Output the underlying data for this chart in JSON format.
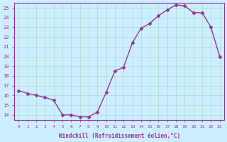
{
  "x": [
    0,
    1,
    2,
    3,
    4,
    5,
    6,
    7,
    8,
    9,
    10,
    11,
    12,
    13,
    14,
    15,
    16,
    17,
    18,
    19,
    20,
    21,
    22,
    23
  ],
  "y": [
    16.5,
    16.2,
    16.0,
    15.8,
    15.5,
    14.0,
    14.0,
    13.8,
    13.8,
    14.3,
    16.3,
    18.5,
    18.9,
    21.4,
    22.9,
    23.4,
    24.2,
    24.8,
    25.3,
    25.2,
    24.5,
    24.5,
    23.0,
    20.0
  ],
  "xlim": [
    -0.5,
    23.5
  ],
  "ylim": [
    13.5,
    25.5
  ],
  "yticks": [
    14,
    15,
    16,
    17,
    18,
    19,
    20,
    21,
    22,
    23,
    24,
    25
  ],
  "xticks": [
    0,
    1,
    2,
    3,
    4,
    5,
    6,
    7,
    8,
    9,
    10,
    11,
    12,
    13,
    14,
    15,
    16,
    17,
    18,
    19,
    20,
    21,
    22,
    23
  ],
  "xlabel": "Windchill (Refroidissement éolien,°C)",
  "line_color": "#993399",
  "marker_color": "#993399",
  "bg_color": "#cceeff",
  "grid_color": "#aaddcc",
  "axis_color": "#993399",
  "tick_color": "#993399",
  "label_color": "#993399"
}
